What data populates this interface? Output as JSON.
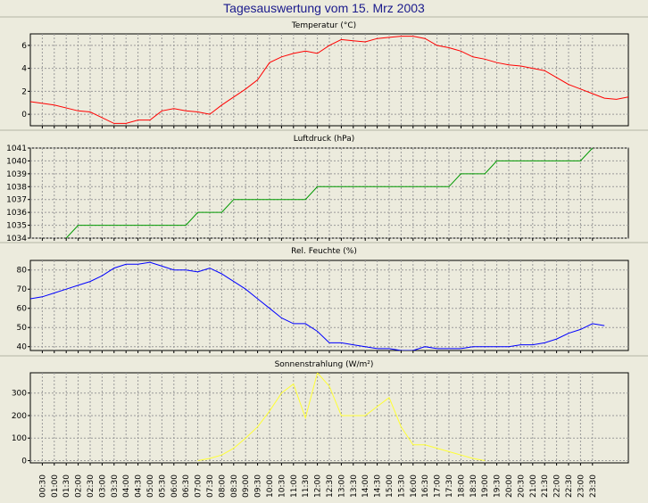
{
  "page": {
    "title": "Tagesauswertung vom 15. Mrz 2003",
    "background": "#ecebdd"
  },
  "time_labels": [
    "00:30",
    "01:00",
    "01:30",
    "02:00",
    "02:30",
    "03:00",
    "03:30",
    "04:00",
    "04:30",
    "05:00",
    "05:30",
    "06:00",
    "06:30",
    "07:00",
    "07:30",
    "08:00",
    "08:30",
    "09:00",
    "09:30",
    "10:00",
    "10:30",
    "11:00",
    "11:30",
    "12:00",
    "12:30",
    "13:00",
    "13:30",
    "14:00",
    "14:30",
    "15:00",
    "15:30",
    "16:00",
    "16:30",
    "17:00",
    "17:30",
    "18:00",
    "18:30",
    "19:00",
    "19:30",
    "20:00",
    "20:30",
    "21:00",
    "21:30",
    "22:00",
    "22:30",
    "23:00",
    "23:30"
  ],
  "chart_data": [
    {
      "type": "line",
      "title": "Temperatur (°C)",
      "ylim": [
        -1,
        7
      ],
      "yticks": [
        0,
        2,
        4,
        6
      ],
      "ytick_labels": [
        "0",
        "2",
        "4",
        "6"
      ],
      "color": "#ff0000",
      "grid": true,
      "points": [
        [
          0,
          1.1
        ],
        [
          2,
          0.8
        ],
        [
          4,
          0.3
        ],
        [
          5,
          0.2
        ],
        [
          7,
          -0.8
        ],
        [
          8,
          -0.8
        ],
        [
          9,
          -0.5
        ],
        [
          10,
          -0.5
        ],
        [
          11,
          0.3
        ],
        [
          12,
          0.5
        ],
        [
          13,
          0.3
        ],
        [
          14,
          0.2
        ],
        [
          15,
          0.0
        ],
        [
          16,
          0.8
        ],
        [
          17,
          1.5
        ],
        [
          18,
          2.2
        ],
        [
          19,
          3.0
        ],
        [
          20,
          4.5
        ],
        [
          21,
          5.0
        ],
        [
          22,
          5.3
        ],
        [
          23,
          5.5
        ],
        [
          24,
          5.3
        ],
        [
          25,
          6.0
        ],
        [
          26,
          6.5
        ],
        [
          27,
          6.4
        ],
        [
          28,
          6.3
        ],
        [
          29,
          6.6
        ],
        [
          30,
          6.7
        ],
        [
          31,
          6.8
        ],
        [
          32,
          6.8
        ],
        [
          33,
          6.6
        ],
        [
          34,
          6.0
        ],
        [
          35,
          5.8
        ],
        [
          36,
          5.5
        ],
        [
          37,
          5.0
        ],
        [
          38,
          4.8
        ],
        [
          39,
          4.5
        ],
        [
          40,
          4.3
        ],
        [
          41,
          4.2
        ],
        [
          42,
          4.0
        ],
        [
          43,
          3.8
        ],
        [
          44,
          3.2
        ],
        [
          45,
          2.6
        ],
        [
          46,
          2.2
        ],
        [
          47,
          1.8
        ],
        [
          48,
          1.4
        ],
        [
          49,
          1.3
        ],
        [
          50,
          1.5
        ]
      ]
    },
    {
      "type": "line",
      "title": "Luftdruck (hPa)",
      "ylim": [
        1034,
        1041
      ],
      "yticks": [
        1034,
        1035,
        1036,
        1037,
        1038,
        1039,
        1040,
        1041
      ],
      "ytick_labels": [
        "1034",
        "1035",
        "1036",
        "1037",
        "1038",
        "1039",
        "1040",
        "1041"
      ],
      "color": "#009900",
      "grid": true,
      "points": [
        [
          3,
          1034
        ],
        [
          4,
          1035
        ],
        [
          13,
          1035
        ],
        [
          14,
          1036
        ],
        [
          16,
          1036
        ],
        [
          17,
          1037
        ],
        [
          23,
          1037
        ],
        [
          24,
          1038
        ],
        [
          35,
          1038
        ],
        [
          36,
          1039
        ],
        [
          38,
          1039
        ],
        [
          39,
          1040
        ],
        [
          46,
          1040
        ],
        [
          47,
          1041
        ]
      ]
    },
    {
      "type": "line",
      "title": "Rel. Feuchte (%)",
      "ylim": [
        38,
        85
      ],
      "yticks": [
        40,
        50,
        60,
        70,
        80
      ],
      "ytick_labels": [
        "40",
        "50",
        "60",
        "70",
        "80"
      ],
      "color": "#0000ff",
      "grid": true,
      "points": [
        [
          0,
          65
        ],
        [
          1,
          66
        ],
        [
          2,
          68
        ],
        [
          3,
          70
        ],
        [
          4,
          72
        ],
        [
          5,
          74
        ],
        [
          6,
          77
        ],
        [
          7,
          81
        ],
        [
          8,
          83
        ],
        [
          9,
          83
        ],
        [
          10,
          84
        ],
        [
          11,
          82
        ],
        [
          12,
          80
        ],
        [
          13,
          80
        ],
        [
          14,
          79
        ],
        [
          15,
          81
        ],
        [
          16,
          78
        ],
        [
          17,
          74
        ],
        [
          18,
          70
        ],
        [
          19,
          65
        ],
        [
          20,
          60
        ],
        [
          21,
          55
        ],
        [
          22,
          52
        ],
        [
          23,
          52
        ],
        [
          24,
          48
        ],
        [
          25,
          42
        ],
        [
          26,
          42
        ],
        [
          27,
          41
        ],
        [
          28,
          40
        ],
        [
          29,
          39
        ],
        [
          30,
          39
        ],
        [
          31,
          38
        ],
        [
          32,
          38
        ],
        [
          33,
          40
        ],
        [
          34,
          39
        ],
        [
          35,
          39
        ],
        [
          36,
          39
        ],
        [
          37,
          40
        ],
        [
          38,
          40
        ],
        [
          39,
          40
        ],
        [
          40,
          40
        ],
        [
          41,
          41
        ],
        [
          42,
          41
        ],
        [
          43,
          42
        ],
        [
          44,
          44
        ],
        [
          45,
          47
        ],
        [
          46,
          49
        ],
        [
          47,
          52
        ],
        [
          48,
          51
        ]
      ]
    },
    {
      "type": "line",
      "title": "Sonnenstrahlung (W/m²)",
      "ylim": [
        -10,
        390
      ],
      "yticks": [
        0,
        100,
        200,
        300
      ],
      "ytick_labels": [
        "0",
        "100",
        "200",
        "300"
      ],
      "color": "#ffff33",
      "grid": true,
      "points": [
        [
          14,
          0
        ],
        [
          15,
          10
        ],
        [
          16,
          25
        ],
        [
          17,
          55
        ],
        [
          18,
          100
        ],
        [
          19,
          150
        ],
        [
          20,
          220
        ],
        [
          21,
          300
        ],
        [
          22,
          340
        ],
        [
          23,
          190
        ],
        [
          24,
          390
        ],
        [
          25,
          330
        ],
        [
          26,
          200
        ],
        [
          27,
          200
        ],
        [
          28,
          200
        ],
        [
          29,
          240
        ],
        [
          30,
          280
        ],
        [
          31,
          150
        ],
        [
          32,
          70
        ],
        [
          33,
          70
        ],
        [
          34,
          55
        ],
        [
          35,
          40
        ],
        [
          36,
          25
        ],
        [
          37,
          10
        ],
        [
          38,
          0
        ]
      ]
    }
  ]
}
